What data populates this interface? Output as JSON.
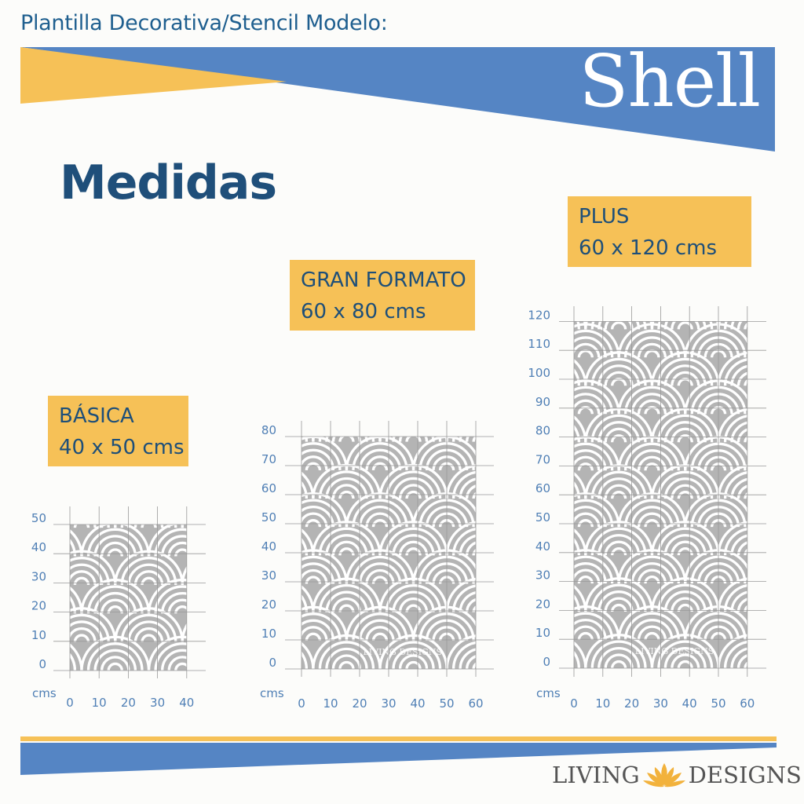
{
  "header": {
    "kicker": "Plantilla Decorativa/Stencil Modelo:",
    "title": "Shell"
  },
  "section_title": "Medidas",
  "units_label": "cms",
  "colors": {
    "blue": "#5585c4",
    "yellow": "#f6c157",
    "dark_blue": "#1f4f7a",
    "stencil_grey": "#b4b4b4",
    "grid": "#999999"
  },
  "sizes": [
    {
      "name": "BÁSICA",
      "dimensions": "40 x 50 cms",
      "width_cm": 40,
      "height_cm": 50,
      "x_ticks": [
        "0",
        "10",
        "20",
        "30",
        "40"
      ],
      "y_ticks": [
        "0",
        "10",
        "20",
        "30",
        "40",
        "50"
      ]
    },
    {
      "name": "GRAN FORMATO",
      "dimensions": "60 x 80 cms",
      "width_cm": 60,
      "height_cm": 80,
      "x_ticks": [
        "0",
        "10",
        "20",
        "30",
        "40",
        "50",
        "60"
      ],
      "y_ticks": [
        "0",
        "10",
        "20",
        "30",
        "40",
        "50",
        "60",
        "70",
        "80"
      ],
      "watermark": "LIVING DESIGNS"
    },
    {
      "name": "PLUS",
      "dimensions": "60 x 120 cms",
      "width_cm": 60,
      "height_cm": 120,
      "x_ticks": [
        "0",
        "10",
        "20",
        "30",
        "40",
        "50",
        "60"
      ],
      "y_ticks": [
        "0",
        "10",
        "20",
        "30",
        "40",
        "50",
        "60",
        "70",
        "80",
        "90",
        "100",
        "110",
        "120"
      ],
      "watermark": "LIVING DESIGNS"
    }
  ],
  "brand": {
    "left": "LIVING",
    "right": "DESIGNS",
    "logo_icon": "lotus-icon"
  }
}
